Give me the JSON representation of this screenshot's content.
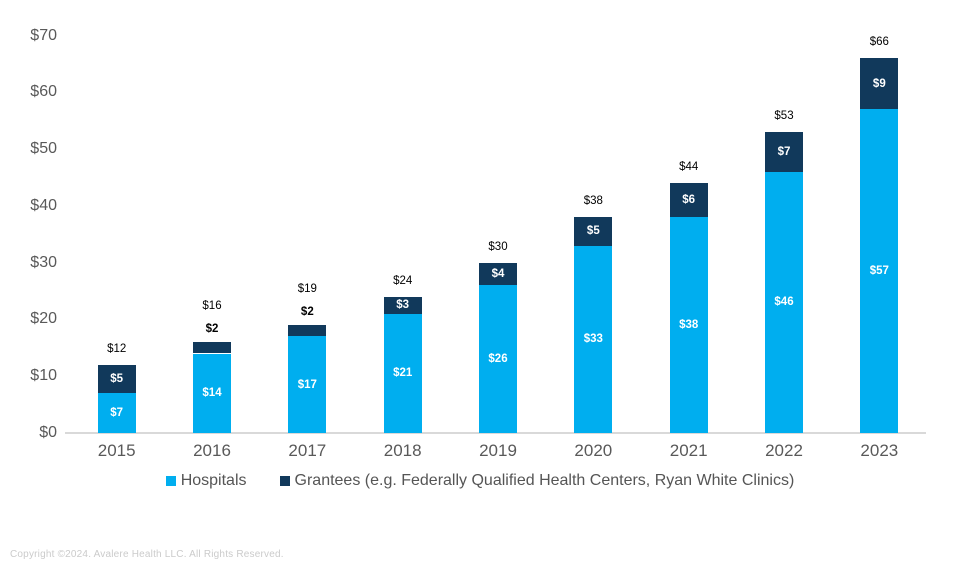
{
  "chart_data": {
    "type": "bar",
    "stacked": true,
    "categories": [
      "2015",
      "2016",
      "2017",
      "2018",
      "2019",
      "2020",
      "2021",
      "2022",
      "2023"
    ],
    "series": [
      {
        "name": "Hospitals",
        "color": "#00AEEF",
        "values": [
          7,
          14,
          17,
          21,
          26,
          33,
          38,
          46,
          57
        ]
      },
      {
        "name": "Grantees (e.g. Federally Qualified Health Centers, Ryan White Clinics)",
        "color": "#11395B",
        "values": [
          5,
          2,
          2,
          3,
          4,
          5,
          6,
          7,
          9
        ]
      }
    ],
    "totals": [
      12,
      16,
      19,
      24,
      30,
      38,
      44,
      53,
      66
    ],
    "value_prefix": "$",
    "ylim": [
      0,
      70
    ],
    "y_tick_step": 10,
    "y_tick_labels": [
      "$0",
      "$10",
      "$20",
      "$30",
      "$40",
      "$50",
      "$60",
      "$70"
    ],
    "grid": false,
    "legend_position": "bottom",
    "title": ""
  },
  "footer": {
    "copyright": "Copyright ©2024. Avalere Health LLC. All Rights Reserved."
  }
}
